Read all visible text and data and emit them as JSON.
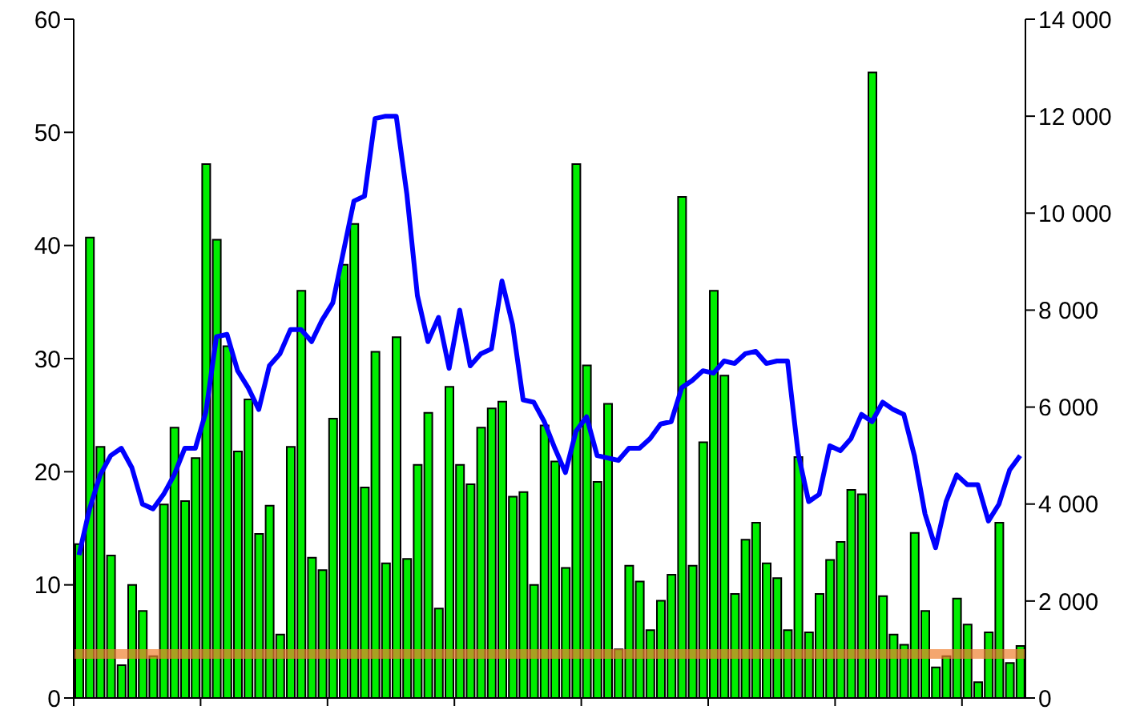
{
  "chart_data": {
    "type": "bar",
    "categories": [
      null,
      null,
      null,
      null,
      null,
      null,
      null,
      null,
      null,
      null,
      null,
      null,
      null,
      null,
      null,
      null,
      null,
      null,
      null,
      null,
      null,
      null,
      null,
      null,
      null,
      null,
      null,
      null,
      null,
      null,
      null,
      null,
      null,
      null,
      null,
      null,
      null,
      null,
      null,
      null,
      null,
      null,
      null,
      null,
      null,
      null,
      null,
      null,
      null,
      null,
      null,
      null,
      null,
      null,
      null,
      null,
      null,
      null,
      null,
      null,
      null,
      null,
      null,
      null,
      null,
      null,
      null,
      null,
      null,
      null,
      null,
      null,
      null,
      null,
      null,
      null,
      null,
      null,
      null,
      null,
      null,
      null,
      null,
      null,
      null,
      null,
      null,
      null,
      null,
      null
    ],
    "series": [
      {
        "color": "#00ee00",
        "values": [
          13.6,
          40.7,
          22.2,
          12.6,
          2.9,
          10.0,
          7.7,
          3.7,
          17.1,
          23.9,
          17.4,
          21.2,
          47.2,
          40.5,
          31.1,
          21.8,
          26.4,
          14.5,
          17.0,
          5.6,
          22.2,
          36.0,
          12.4,
          11.3,
          24.7,
          38.3,
          41.9,
          18.6,
          30.6,
          11.9,
          31.9,
          12.3,
          20.6,
          25.2,
          7.9,
          27.5,
          20.6,
          18.9,
          23.9,
          25.6,
          26.2,
          17.8,
          18.2,
          10.0,
          24.1,
          20.9,
          11.5,
          47.2,
          29.4,
          19.1,
          26.0,
          4.3,
          11.7,
          10.3,
          6.0,
          8.6,
          10.9,
          44.3,
          11.7,
          22.6,
          36.0,
          28.5,
          9.2,
          14.0,
          15.5,
          11.9,
          10.6,
          6.0,
          21.3,
          5.8,
          9.2,
          12.2,
          13.8,
          18.4,
          18.0,
          55.3,
          9.0,
          5.6,
          4.7,
          14.6,
          7.7,
          2.7,
          3.7,
          8.8,
          6.5,
          1.4,
          5.8,
          15.5,
          3.1,
          4.6
        ]
      },
      {
        "type": "line",
        "axis": "y2",
        "color": "#0000ff",
        "values": [
          2950,
          3900,
          4600,
          5000,
          5150,
          4750,
          4000,
          3900,
          4200,
          4600,
          5150,
          5150,
          5900,
          7450,
          7500,
          6750,
          6400,
          5950,
          6850,
          7100,
          7600,
          7600,
          7350,
          7800,
          8150,
          9200,
          10250,
          10350,
          11950,
          12000,
          12000,
          10400,
          8300,
          7350,
          7850,
          6800,
          8000,
          6850,
          7100,
          7200,
          8600,
          7700,
          6150,
          6100,
          5700,
          5150,
          4650,
          5500,
          5800,
          5000,
          4950,
          4900,
          5150,
          5150,
          5350,
          5650,
          5700,
          6400,
          6550,
          6750,
          6700,
          6950,
          6900,
          7100,
          7150,
          6900,
          6950,
          6950,
          5050,
          4050,
          4200,
          5200,
          5100,
          5350,
          5850,
          5700,
          6100,
          5950,
          5850,
          5000,
          3800,
          3100,
          4050,
          4600,
          4400,
          4400,
          3650,
          4000,
          4700,
          5000
        ]
      }
    ],
    "ylim": [
      0,
      60
    ],
    "yticks": [
      0,
      10,
      20,
      30,
      40,
      50,
      60
    ],
    "y2lim": [
      0,
      14000
    ],
    "y2ticks": [
      0,
      {
        "value": 2000,
        "label": "2 000"
      },
      {
        "value": 4000,
        "label": "4 000"
      },
      {
        "value": 6000,
        "label": "6 000"
      },
      {
        "value": 8000,
        "label": "8 000"
      },
      {
        "value": 10000,
        "label": "10 000"
      },
      {
        "value": 12000,
        "label": "12 000"
      },
      {
        "value": 14000,
        "label": "14 000"
      }
    ],
    "ref_lines": [
      {
        "axis": "y",
        "value": 3.9,
        "color": "#f08030"
      }
    ],
    "tick_labels": "y",
    "grid": false,
    "legend": false
  }
}
